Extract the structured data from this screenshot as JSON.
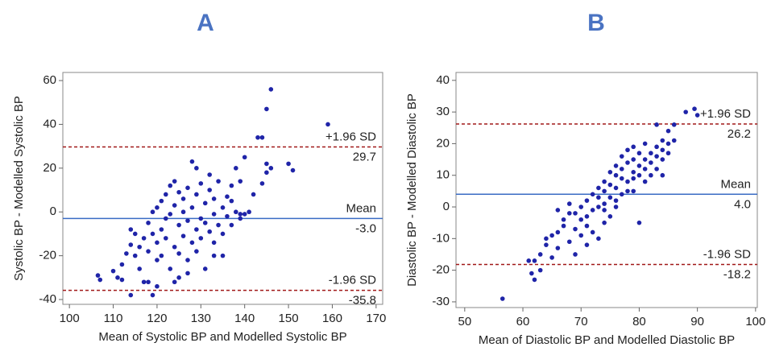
{
  "chart_data": [
    {
      "type": "scatter",
      "title": "A",
      "x_label": "Mean of Systolic BP and Modelled Systolic BP",
      "y_label": "Systolic BP - Modelled Systolic BP",
      "color": "#1f24a8",
      "xlim": [
        98.5,
        171.5
      ],
      "ylim": [
        -42.2,
        63.7
      ],
      "xticks": [
        100,
        110,
        120,
        130,
        140,
        150,
        160,
        170
      ],
      "yticks": [
        -40,
        -20,
        0,
        20,
        40,
        60
      ],
      "reference_lines": [
        {
          "name": "+1.96 SD",
          "value": 29.7,
          "value_label": "29.7",
          "color": "#a01818",
          "dashed": true
        },
        {
          "name": "Mean",
          "value": -3.0,
          "value_label": "-3.0",
          "color": "#3a6bc4",
          "dashed": false
        },
        {
          "name": "-1.96 SD",
          "value": -35.8,
          "value_label": "-35.8",
          "color": "#a01818",
          "dashed": true
        }
      ],
      "x": [
        106.5,
        107,
        110,
        111,
        112,
        112,
        113,
        114,
        114,
        114,
        115,
        115,
        116,
        116,
        117,
        117,
        118,
        118,
        118,
        119,
        119,
        119,
        120,
        120,
        120,
        121,
        121,
        121,
        122,
        122,
        122,
        123,
        123,
        123,
        124,
        124,
        124,
        124,
        125,
        125,
        125,
        125,
        126,
        126,
        126,
        127,
        127,
        127,
        128,
        128,
        128,
        129,
        129,
        129,
        129,
        130,
        130,
        130,
        131,
        131,
        131,
        132,
        132,
        132,
        133,
        133,
        133,
        134,
        134,
        135,
        135,
        135,
        136,
        136,
        137,
        137,
        137,
        138,
        138,
        139,
        139,
        140,
        140,
        141,
        142,
        143,
        144,
        144,
        145,
        145,
        145,
        146,
        146,
        150,
        151,
        159,
        139,
        127,
        120,
        133
      ],
      "y": [
        -29,
        -31,
        -27,
        -30,
        -24,
        -31,
        -19,
        -38,
        -15,
        -8,
        -10,
        -20,
        -16,
        -26,
        -32,
        -12,
        -32,
        -5,
        -18,
        -38,
        0,
        -10,
        -14,
        2,
        -22,
        -8,
        -20,
        5,
        -3,
        -12,
        8,
        -26,
        -1,
        12,
        -32,
        -16,
        3,
        14,
        -30,
        -6,
        9,
        -19,
        -11,
        0,
        6,
        -22,
        -4,
        11,
        -14,
        2,
        23,
        -8,
        -18,
        8,
        20,
        -3,
        13,
        -12,
        -26,
        4,
        -5,
        10,
        -9,
        17,
        -1,
        -14,
        6,
        -6,
        14,
        2,
        -10,
        -20,
        7,
        -2,
        -6,
        12,
        5,
        0,
        20,
        -1,
        14,
        25,
        -1,
        0,
        8,
        34,
        34,
        13,
        47,
        22,
        18,
        56,
        20,
        22,
        19,
        40,
        -3,
        -28,
        -34,
        -20
      ]
    },
    {
      "type": "scatter",
      "title": "B",
      "x_label": "Mean of Diastolic BP and Modelled Diastolic BP",
      "y_label": "Diastolic BP - Modelled Diastolic BP",
      "color": "#1f24a8",
      "xlim": [
        48.5,
        100.3
      ],
      "ylim": [
        -31.8,
        42.5
      ],
      "xticks": [
        50,
        60,
        70,
        80,
        90,
        100
      ],
      "yticks": [
        -30,
        -20,
        -10,
        0,
        10,
        20,
        30,
        40
      ],
      "reference_lines": [
        {
          "name": "+1.96 SD",
          "value": 26.2,
          "value_label": "26.2",
          "color": "#a01818",
          "dashed": true
        },
        {
          "name": "Mean",
          "value": 4.0,
          "value_label": "4.0",
          "color": "#3a6bc4",
          "dashed": false
        },
        {
          "name": "-1.96 SD",
          "value": -18.2,
          "value_label": "-18.2",
          "color": "#a01818",
          "dashed": true
        }
      ],
      "x": [
        56.5,
        61,
        61.5,
        62,
        62,
        63,
        63,
        64,
        65,
        65,
        66,
        66,
        67,
        67,
        68,
        68,
        68,
        69,
        69,
        69,
        70,
        70,
        70,
        71,
        71,
        71,
        72,
        72,
        72,
        73,
        73,
        73,
        73,
        74,
        74,
        74,
        74,
        75,
        75,
        75,
        75,
        76,
        76,
        76,
        76,
        77,
        77,
        77,
        77,
        78,
        78,
        78,
        78,
        79,
        79,
        79,
        79,
        80,
        80,
        80,
        80,
        81,
        81,
        81,
        82,
        82,
        82,
        83,
        83,
        83,
        83,
        84,
        84,
        84,
        85,
        85,
        85,
        86,
        86,
        88,
        89.5,
        90,
        64,
        66,
        71,
        74,
        76,
        79,
        81,
        84
      ],
      "y": [
        -29,
        -17,
        -21,
        -23,
        -17,
        -20,
        -15,
        -12,
        -16,
        -9,
        -8,
        -13,
        -4,
        -6,
        -2,
        -11,
        1,
        -7,
        -2,
        -15,
        -4,
        0,
        -9,
        2,
        -6,
        -12,
        -1,
        4,
        -8,
        3,
        6,
        0,
        -10,
        5,
        1,
        8,
        -5,
        7,
        3,
        -3,
        11,
        6,
        10,
        13,
        0,
        4,
        9,
        16,
        12,
        8,
        14,
        18,
        5,
        11,
        15,
        19,
        9,
        13,
        17,
        -5,
        10,
        12,
        15,
        20,
        14,
        10,
        17,
        12,
        16,
        19,
        26,
        15,
        21,
        18,
        24,
        17,
        20,
        26,
        21,
        30,
        31,
        29,
        -10,
        -1,
        -3,
        -1,
        2,
        5,
        8,
        10
      ]
    }
  ]
}
